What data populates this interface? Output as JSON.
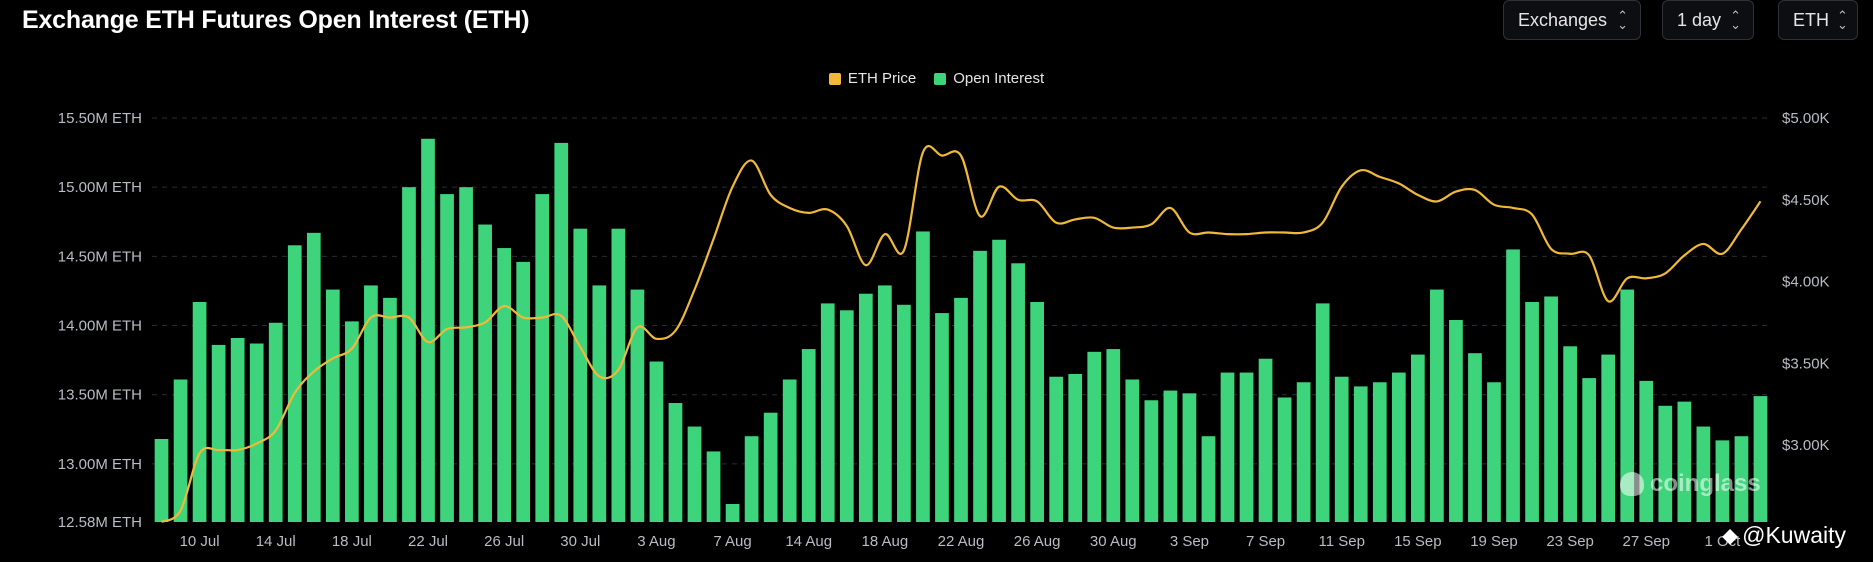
{
  "header": {
    "title": "Exchange ETH Futures Open Interest (ETH)",
    "controls": [
      {
        "label": "Exchanges",
        "icon": "chevron-updown-icon"
      },
      {
        "label": "1 day",
        "icon": "chevron-updown-icon"
      },
      {
        "label": "ETH",
        "icon": "chevron-updown-icon"
      }
    ]
  },
  "watermark": {
    "text": "coinglass"
  },
  "credit": {
    "text": "@Kuwaity"
  },
  "colors": {
    "background": "#000000",
    "bars": "#3ed47c",
    "line": "#f0b93a",
    "grid": "#2a2d33",
    "axis_text": "#b8bcc4"
  },
  "chart_data": {
    "type": "bar",
    "title": "Exchange ETH Futures Open Interest (ETH)",
    "legend": [
      {
        "name": "ETH Price",
        "color": "#f0b93a"
      },
      {
        "name": "Open Interest",
        "color": "#3ed47c"
      }
    ],
    "legend_position": "top-center",
    "grid": true,
    "x_tick_labels": [
      "10 Jul",
      "14 Jul",
      "18 Jul",
      "22 Jul",
      "26 Jul",
      "30 Jul",
      "3 Aug",
      "7 Aug",
      "14 Aug",
      "18 Aug",
      "22 Aug",
      "26 Aug",
      "30 Aug",
      "3 Sep",
      "7 Sep",
      "11 Sep",
      "15 Sep",
      "19 Sep",
      "23 Sep",
      "27 Sep",
      "1 Oct"
    ],
    "x_tick_index": [
      2,
      6,
      10,
      14,
      18,
      22,
      26,
      30,
      34,
      38,
      42,
      46,
      50,
      54,
      58,
      62,
      66,
      70,
      74,
      78,
      82
    ],
    "y_left": {
      "ticks": [
        "15.50M ETH",
        "15.00M ETH",
        "14.50M ETH",
        "14.00M ETH",
        "13.50M ETH",
        "13.00M ETH",
        "12.58M ETH"
      ],
      "tick_values": [
        15.5,
        15.0,
        14.5,
        14.0,
        13.5,
        13.0,
        12.58
      ],
      "range": [
        12.58,
        15.5
      ],
      "unit": "M ETH"
    },
    "y_right": {
      "ticks": [
        "$5.00K",
        "$4.50K",
        "$4.00K",
        "$3.50K",
        "$3.00K"
      ],
      "tick_values": [
        5.0,
        4.5,
        4.0,
        3.5,
        3.0
      ],
      "range": [
        2.53,
        5.0
      ],
      "unit": "$K"
    },
    "series": [
      {
        "name": "Open Interest",
        "type": "bar",
        "axis": "left",
        "values": [
          13.18,
          13.61,
          14.17,
          13.86,
          13.91,
          13.87,
          14.02,
          14.58,
          14.67,
          14.26,
          14.03,
          14.29,
          14.2,
          15.0,
          15.35,
          14.95,
          15.0,
          14.73,
          14.56,
          14.46,
          14.95,
          15.32,
          14.7,
          14.29,
          14.7,
          14.26,
          13.74,
          13.44,
          13.27,
          13.09,
          12.71,
          13.2,
          13.37,
          13.61,
          13.83,
          14.16,
          14.11,
          14.23,
          14.29,
          14.15,
          14.68,
          14.09,
          14.2,
          14.54,
          14.62,
          14.45,
          14.17,
          13.63,
          13.65,
          13.81,
          13.83,
          13.61,
          13.46,
          13.53,
          13.51,
          13.2,
          13.66,
          13.66,
          13.76,
          13.48,
          13.59,
          14.16,
          13.63,
          13.56,
          13.59,
          13.66,
          13.79,
          14.26,
          14.04,
          13.8,
          13.59,
          14.55,
          14.17,
          14.21,
          13.85,
          13.62,
          13.79,
          14.26,
          13.6,
          13.42,
          13.45,
          13.27,
          13.17,
          13.2,
          13.49
        ]
      },
      {
        "name": "ETH Price",
        "type": "line",
        "axis": "right",
        "values": [
          2.53,
          2.6,
          2.95,
          2.97,
          2.97,
          3.01,
          3.09,
          3.32,
          3.45,
          3.53,
          3.59,
          3.78,
          3.78,
          3.78,
          3.63,
          3.71,
          3.72,
          3.75,
          3.85,
          3.78,
          3.78,
          3.79,
          3.6,
          3.42,
          3.46,
          3.72,
          3.65,
          3.7,
          3.95,
          4.26,
          4.58,
          4.74,
          4.53,
          4.45,
          4.42,
          4.44,
          4.34,
          4.1,
          4.29,
          4.19,
          4.79,
          4.77,
          4.77,
          4.4,
          4.58,
          4.5,
          4.49,
          4.36,
          4.38,
          4.39,
          4.33,
          4.33,
          4.35,
          4.45,
          4.3,
          4.3,
          4.29,
          4.29,
          4.3,
          4.3,
          4.3,
          4.36,
          4.58,
          4.68,
          4.64,
          4.6,
          4.53,
          4.49,
          4.55,
          4.56,
          4.47,
          4.45,
          4.41,
          4.2,
          4.17,
          4.16,
          3.88,
          4.02,
          4.02,
          4.05,
          4.16,
          4.23,
          4.17,
          4.32,
          4.49
        ]
      }
    ]
  }
}
